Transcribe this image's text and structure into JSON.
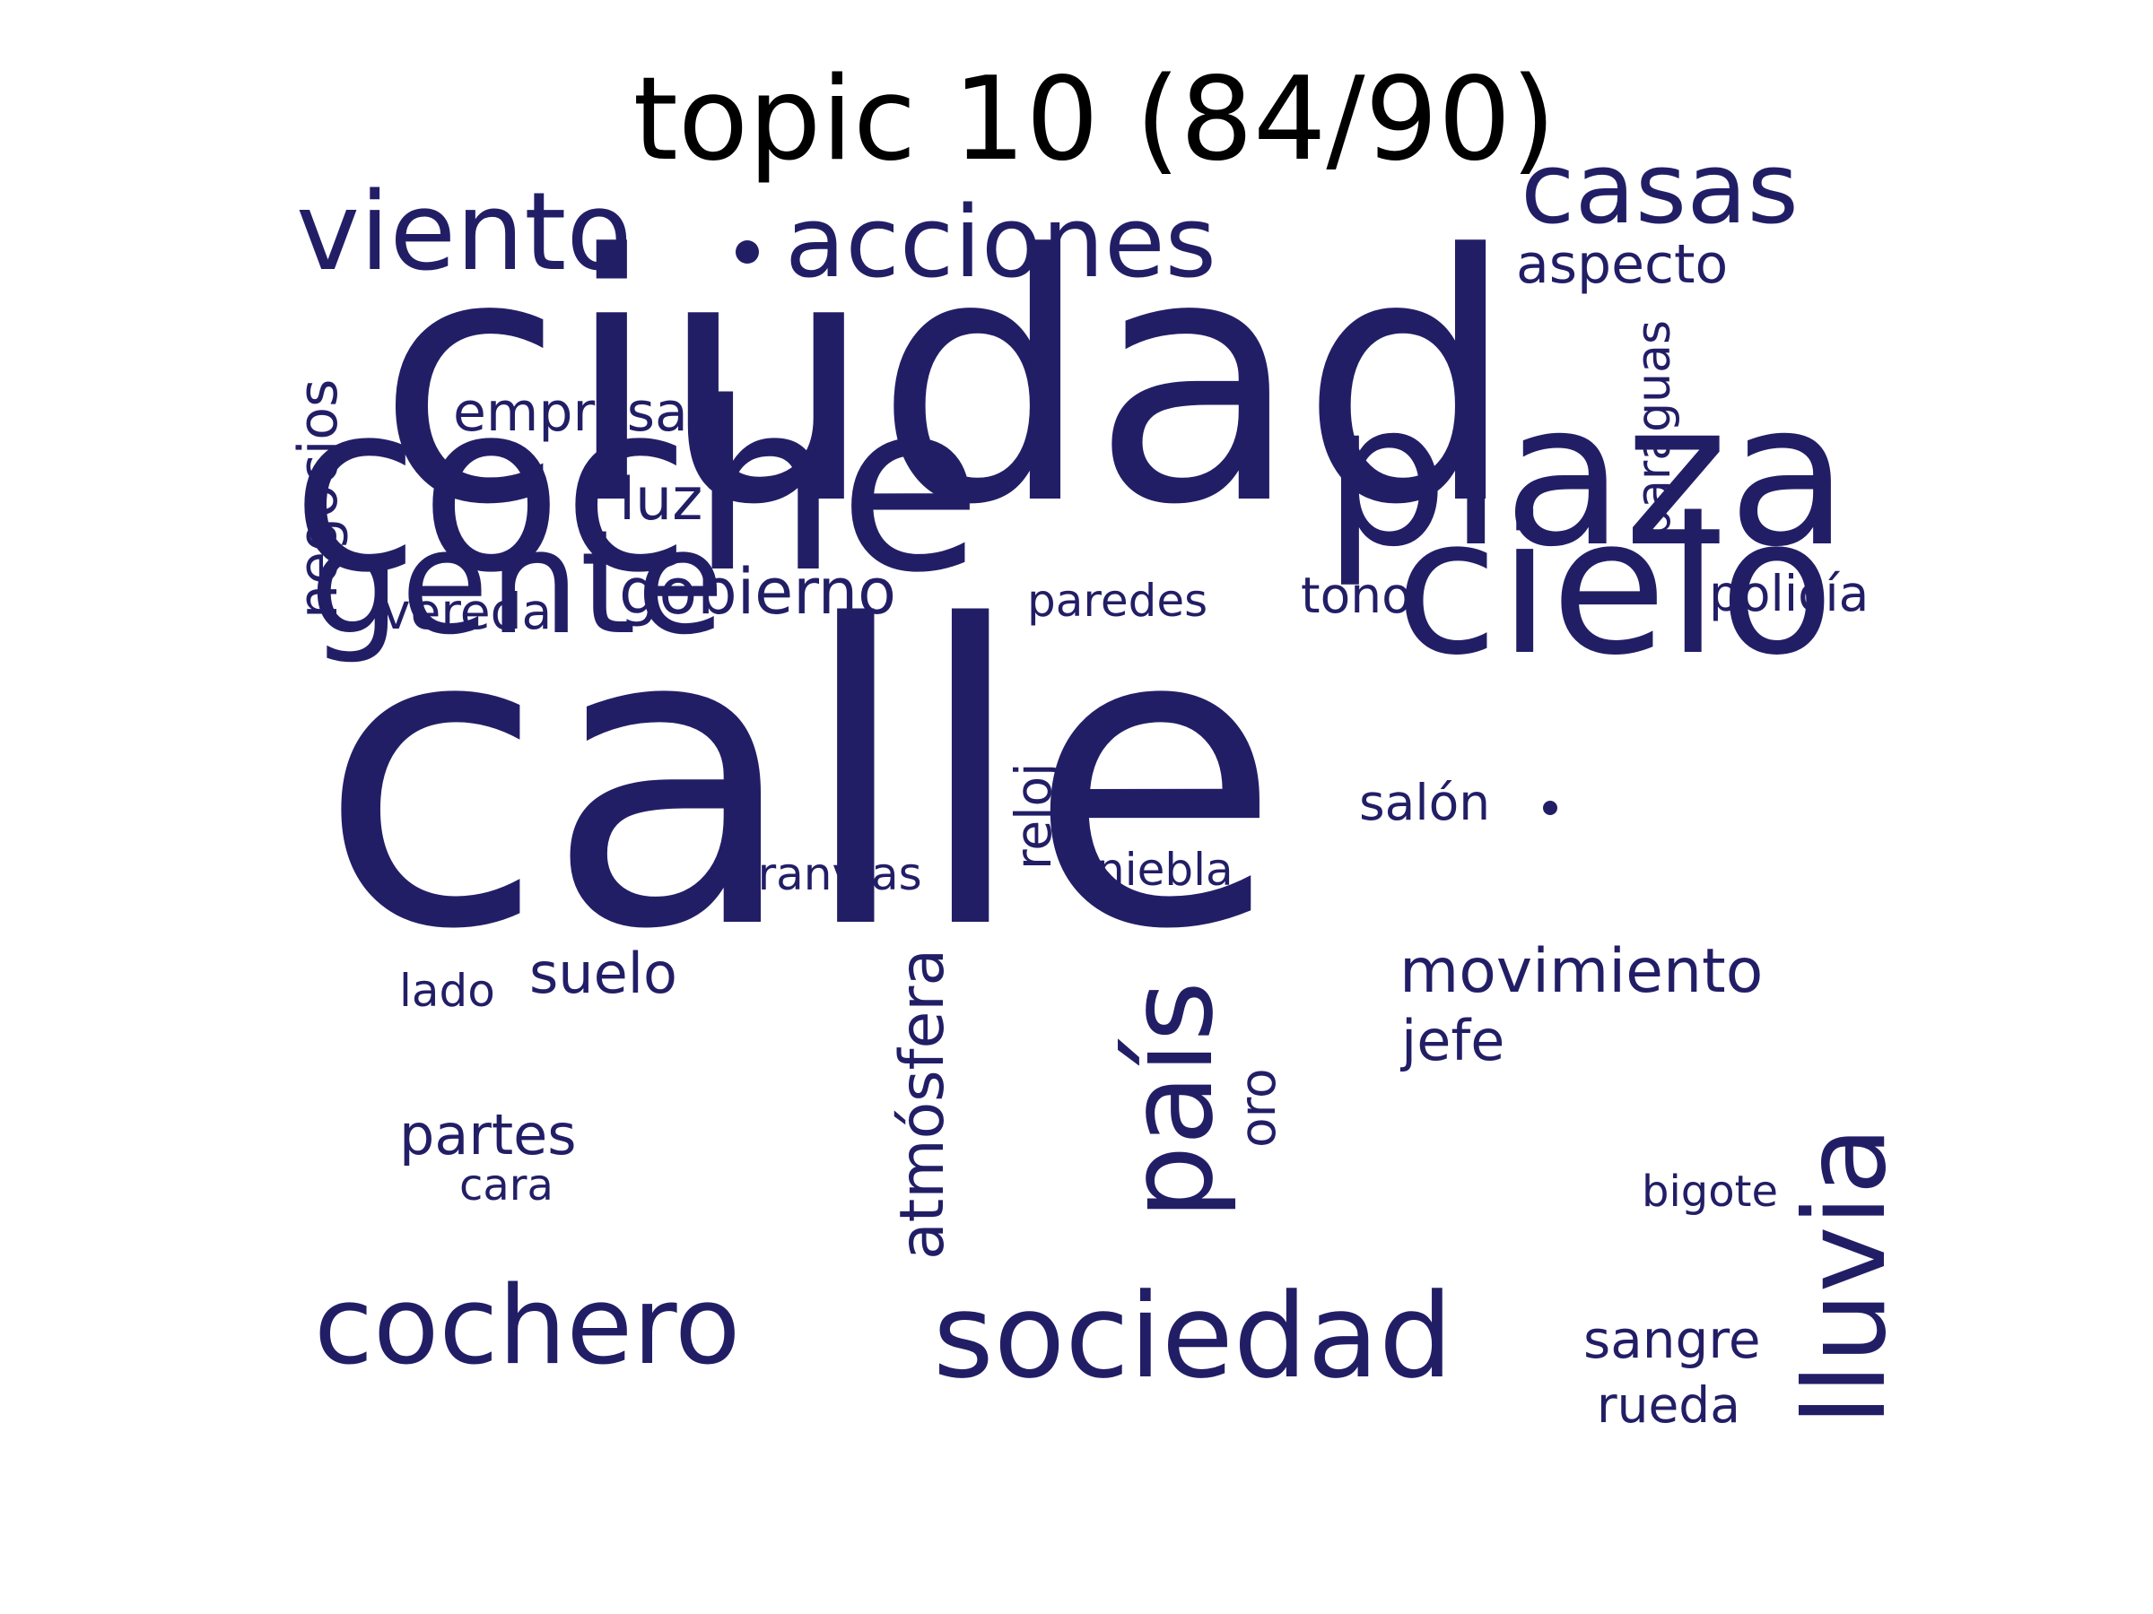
{
  "title": "topic 10 (84/90)",
  "color": "#221e66",
  "words": [
    {
      "id": "ciudad",
      "text": "ciudad",
      "vertical": false
    },
    {
      "id": "calle",
      "text": "calle",
      "vertical": false
    },
    {
      "id": "coche",
      "text": "coche",
      "vertical": false
    },
    {
      "id": "plaza",
      "text": "plaza",
      "vertical": false
    },
    {
      "id": "cielo",
      "text": "cielo",
      "vertical": false
    },
    {
      "id": "gente",
      "text": "gente",
      "vertical": false
    },
    {
      "id": "viento",
      "text": "viento",
      "vertical": false
    },
    {
      "id": "acciones",
      "text": "acciones",
      "vertical": false
    },
    {
      "id": "casas",
      "text": "casas",
      "vertical": false
    },
    {
      "id": "sociedad",
      "text": "sociedad",
      "vertical": false
    },
    {
      "id": "cochero",
      "text": "cochero",
      "vertical": false
    },
    {
      "id": "lluvia",
      "text": "lluvia",
      "vertical": true
    },
    {
      "id": "pais",
      "text": "país",
      "vertical": true
    },
    {
      "id": "atmosfera",
      "text": "atmósfera",
      "vertical": true
    },
    {
      "id": "negocios",
      "text": "negocios",
      "vertical": true
    },
    {
      "id": "movimiento",
      "text": "movimiento",
      "vertical": false
    },
    {
      "id": "gobierno",
      "text": "gobierno",
      "vertical": false
    },
    {
      "id": "aspecto",
      "text": "aspecto",
      "vertical": false
    },
    {
      "id": "empresa",
      "text": "empresa",
      "vertical": false
    },
    {
      "id": "luz",
      "text": "luz",
      "vertical": false
    },
    {
      "id": "paraguas",
      "text": "paraguas",
      "vertical": true
    },
    {
      "id": "vereda",
      "text": "vereda",
      "vertical": false
    },
    {
      "id": "paredes",
      "text": "paredes",
      "vertical": false
    },
    {
      "id": "tono",
      "text": "tono",
      "vertical": false
    },
    {
      "id": "policia",
      "text": "policía",
      "vertical": false
    },
    {
      "id": "reloj",
      "text": "reloj",
      "vertical": true
    },
    {
      "id": "salon",
      "text": "salón",
      "vertical": false
    },
    {
      "id": "tranvias",
      "text": "tranvías",
      "vertical": false
    },
    {
      "id": "niebla",
      "text": "niebla",
      "vertical": false
    },
    {
      "id": "suelo",
      "text": "suelo",
      "vertical": false
    },
    {
      "id": "lado",
      "text": "lado",
      "vertical": false
    },
    {
      "id": "jefe",
      "text": "jefe",
      "vertical": false
    },
    {
      "id": "oro",
      "text": "oro",
      "vertical": true
    },
    {
      "id": "partes",
      "text": "partes",
      "vertical": false
    },
    {
      "id": "cara",
      "text": "cara",
      "vertical": false
    },
    {
      "id": "bigote",
      "text": "bigote",
      "vertical": false
    },
    {
      "id": "sangre",
      "text": "sangre",
      "vertical": false
    },
    {
      "id": "rueda",
      "text": "rueda",
      "vertical": false
    }
  ]
}
